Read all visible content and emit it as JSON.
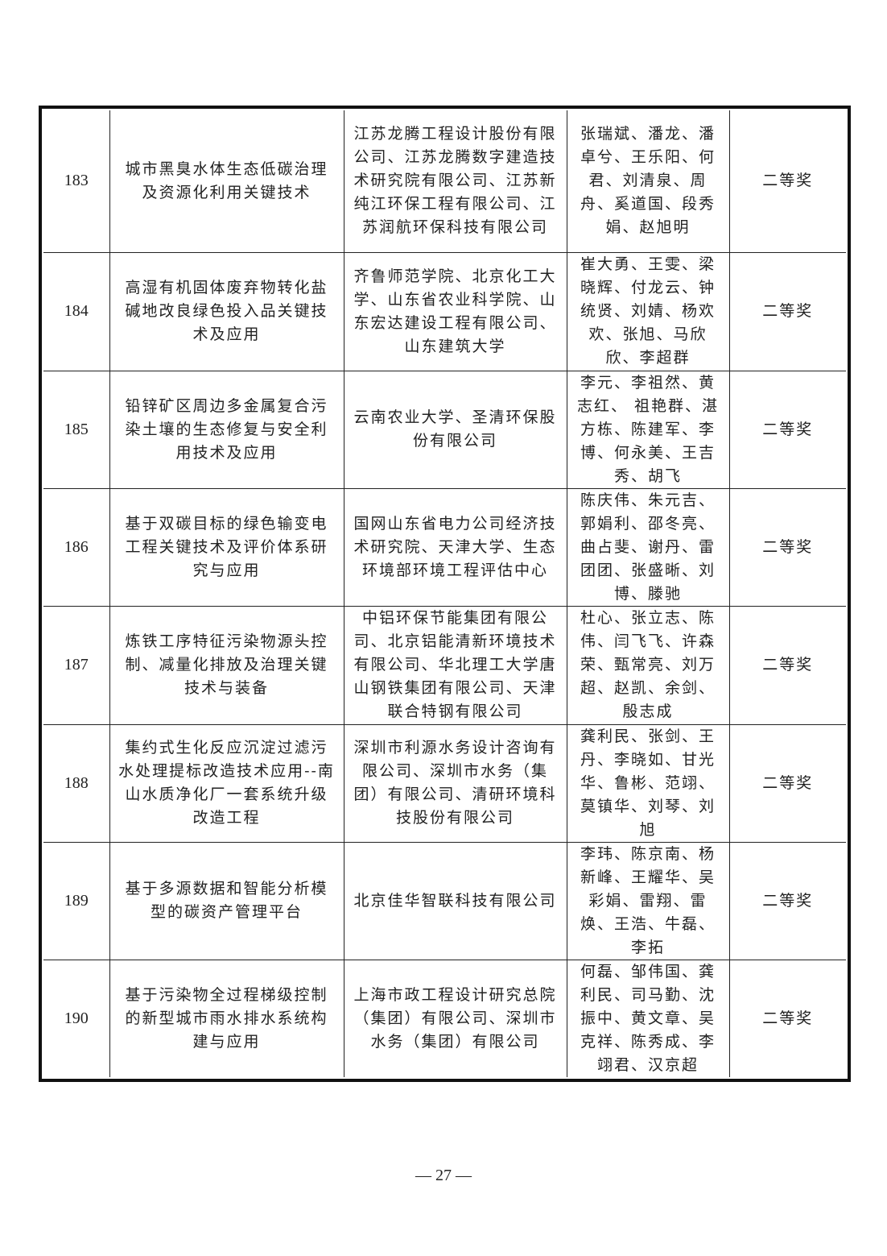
{
  "rows": [
    {
      "no": "183",
      "title": "城市黑臭水体生态低碳治理及资源化利用关键技术",
      "units": "江苏龙腾工程设计股份有限公司、江苏龙腾数字建造技术研究院有限公司、江苏新纯江环保工程有限公司、江苏润航环保科技有限公司",
      "people": "张瑞斌、潘龙、潘卓兮、王乐阳、何君、刘清泉、周舟、奚道国、段秀娟、赵旭明",
      "award": "二等奖"
    },
    {
      "no": "184",
      "title": "高湿有机固体废弃物转化盐碱地改良绿色投入品关键技术及应用",
      "units": "齐鲁师范学院、北京化工大学、山东省农业科学院、山东宏达建设工程有限公司、山东建筑大学",
      "people": "崔大勇、王雯、梁晓辉、付龙云、钟统贤、刘婧、杨欢欢、张旭、马欣欣、李超群",
      "award": "二等奖"
    },
    {
      "no": "185",
      "title": "铅锌矿区周边多金属复合污染土壤的生态修复与安全利用技术及应用",
      "units": "云南农业大学、圣清环保股份有限公司",
      "people": "李元、李祖然、黄志红、 祖艳群、湛方栋、陈建军、李博、何永美、王吉秀、胡飞",
      "award": "二等奖"
    },
    {
      "no": "186",
      "title": "基于双碳目标的绿色输变电工程关键技术及评价体系研究与应用",
      "units": "国网山东省电力公司经济技术研究院、天津大学、生态环境部环境工程评估中心",
      "people": "陈庆伟、朱元吉、郭娟利、邵冬亮、曲占斐、谢丹、雷团团、张盛晰、刘博、滕驰",
      "award": "二等奖"
    },
    {
      "no": "187",
      "title": "炼铁工序特征污染物源头控制、减量化排放及治理关键技术与装备",
      "units": "中铝环保节能集团有限公司、北京铝能清新环境技术有限公司、华北理工大学唐山钢铁集团有限公司、天津联合特钢有限公司",
      "people": "杜心、张立志、陈伟、闫飞飞、许森荣、甄常亮、刘万超、赵凯、余剑、殷志成",
      "award": "二等奖"
    },
    {
      "no": "188",
      "title": "集约式生化反应沉淀过滤污水处理提标改造技术应用--南山水质净化厂一套系统升级改造工程",
      "units": "深圳市利源水务设计咨询有限公司、深圳市水务（集团）有限公司、清研环境科技股份有限公司",
      "people": "龚利民、张剑、王丹、李晓如、甘光华、鲁彬、范翊、莫镇华、刘琴、刘旭",
      "award": "二等奖"
    },
    {
      "no": "189",
      "title": "基于多源数据和智能分析模型的碳资产管理平台",
      "units": "北京佳华智联科技有限公司",
      "people": "李玮、陈京南、杨新峰、王耀华、吴彩娟、雷翔、雷焕、王浩、牛磊、李拓",
      "award": "二等奖"
    },
    {
      "no": "190",
      "title": "基于污染物全过程梯级控制的新型城市雨水排水系统构建与应用",
      "units": "上海市政工程设计研究总院（集团）有限公司、深圳市水务（集团）有限公司",
      "people": "何磊、邹伟国、龚利民、司马勤、沈振中、黄文章、吴克祥、陈秀成、李翊君、汉京超",
      "award": "二等奖"
    }
  ],
  "page_number": "— 27 —"
}
